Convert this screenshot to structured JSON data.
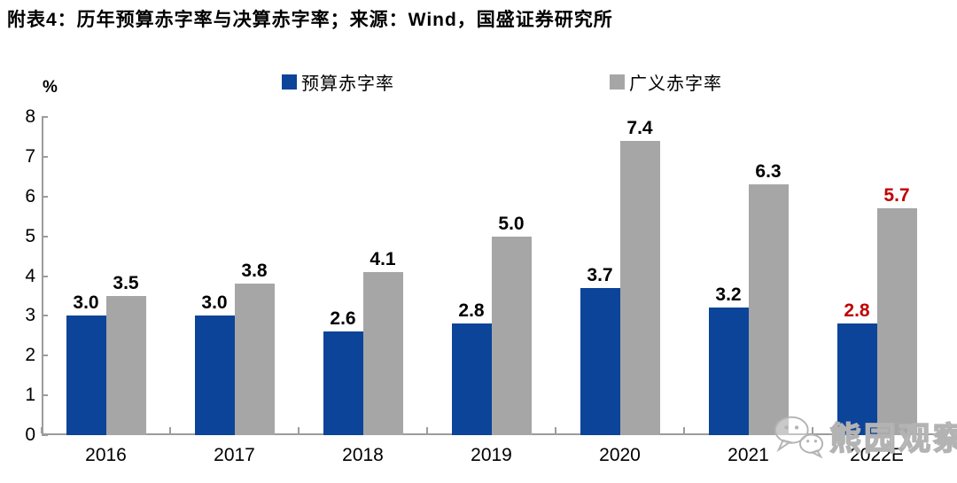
{
  "title": "附表4：历年预算赤字率与决算赤字率；来源：Wind，国盛证券研究所",
  "unit_label": "%",
  "watermark": {
    "text": "熊园观察",
    "icon": "wechat-icon"
  },
  "colors": {
    "budget_series": "#0B4499",
    "broad_series": "#A6A6A6",
    "highlight_label": "#C00000",
    "value_label": "#000000",
    "axis_line": "#9c9c9c"
  },
  "chart_data": {
    "type": "bar",
    "title": "历年预算赤字率与决算赤字率",
    "categories": [
      "2016",
      "2017",
      "2018",
      "2019",
      "2020",
      "2021",
      "2022E"
    ],
    "series": [
      {
        "name": "预算赤字率",
        "color": "#0B4499",
        "values": [
          3.0,
          3.0,
          2.6,
          2.8,
          3.7,
          3.2,
          2.8
        ]
      },
      {
        "name": "广义赤字率",
        "color": "#A6A6A6",
        "values": [
          3.5,
          3.8,
          4.1,
          5.0,
          7.4,
          6.3,
          5.7
        ]
      }
    ],
    "xlabel": "",
    "ylabel": "%",
    "ylim": [
      0,
      8
    ],
    "ytick_step": 1,
    "grid": false,
    "legend_position": "top",
    "value_labels": true,
    "label_decimals": 1,
    "highlight_category": "2022E",
    "highlight_label_color": "#C00000"
  }
}
